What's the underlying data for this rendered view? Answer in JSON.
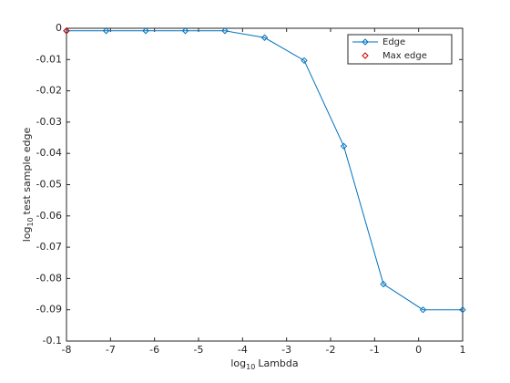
{
  "chart_data": {
    "type": "line",
    "xlabel": {
      "base": "log",
      "sub": "10",
      "rest": "Lambda"
    },
    "ylabel": {
      "base": "log",
      "sub": "10",
      "rest": "test sample edge"
    },
    "xlim": [
      -8,
      1
    ],
    "ylim": [
      -0.1,
      0
    ],
    "xticks": [
      -8,
      -7,
      -6,
      -5,
      -4,
      -3,
      -2,
      -1,
      0,
      1
    ],
    "yticks": [
      0,
      -0.01,
      -0.02,
      -0.03,
      -0.04,
      -0.05,
      -0.06,
      -0.07,
      -0.08,
      -0.09,
      -0.1
    ],
    "grid": false,
    "legend": "northeast",
    "series": [
      {
        "name": "Edge",
        "color": "#0072bd",
        "line": true,
        "x": [
          -8,
          -7.1,
          -6.2,
          -5.3,
          -4.4,
          -3.5,
          -2.6,
          -1.7,
          -0.8,
          0.1,
          1
        ],
        "values": [
          -0.0008,
          -0.0008,
          -0.0008,
          -0.0008,
          -0.0008,
          -0.003,
          -0.0103,
          -0.0377,
          -0.0818,
          -0.09,
          -0.09
        ]
      },
      {
        "name": "Max edge",
        "color": "#d00000",
        "line": false,
        "x": [
          -8
        ],
        "values": [
          -0.0008
        ]
      }
    ]
  }
}
